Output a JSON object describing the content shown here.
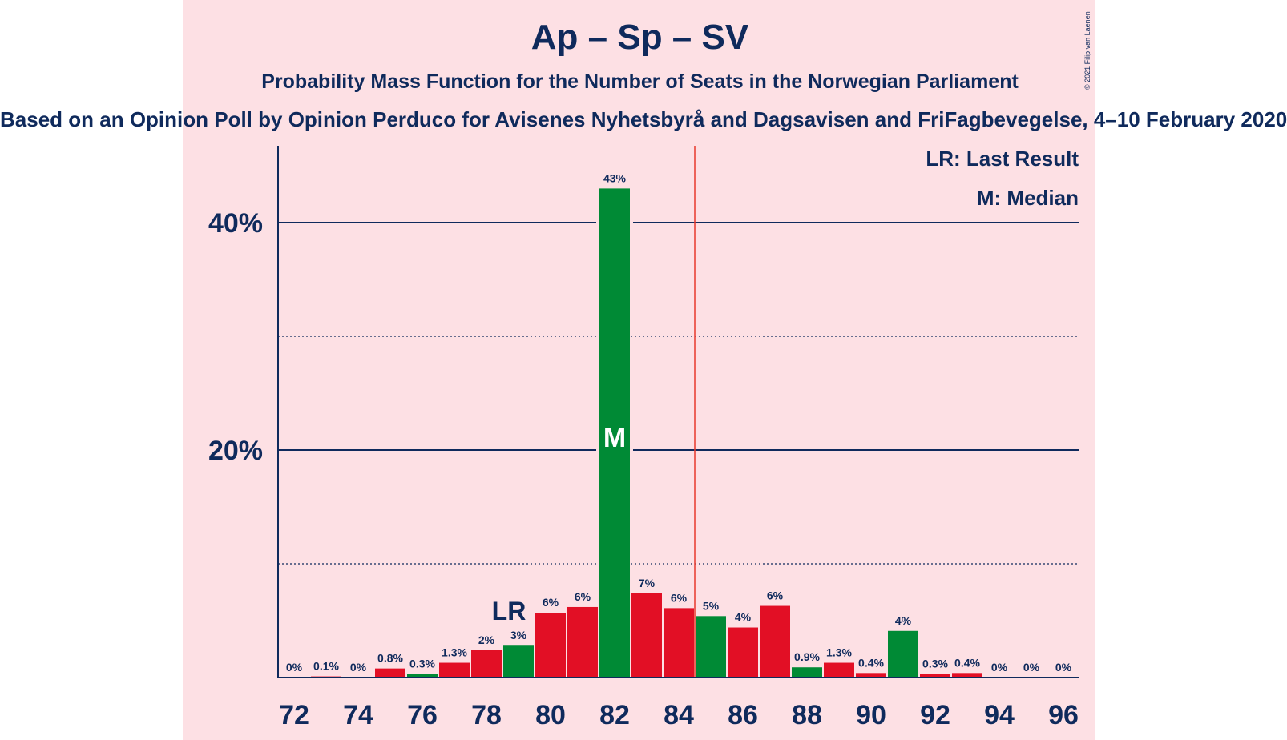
{
  "title": "Ap – Sp – SV",
  "subtitle": "Probability Mass Function for the Number of Seats in the Norwegian Parliament",
  "subtitle2": "Based on an Opinion Poll by Opinion Perduco for Avisenes Nyhetsbyrå and Dagsavisen and FriFagbevegelse, 4–10 February 2020",
  "copyright": "© 2021 Filip van Laenen",
  "legend": {
    "lr": "LR: Last Result",
    "m": "M: Median"
  },
  "colors": {
    "background": "#fde0e4",
    "red": "#e20f25",
    "green": "#008a35",
    "text": "#0f2a5c",
    "majority_line": "#e8392c"
  },
  "chart_data": {
    "type": "bar",
    "x": [
      72,
      73,
      74,
      75,
      76,
      77,
      78,
      79,
      80,
      81,
      82,
      83,
      84,
      85,
      86,
      87,
      88,
      89,
      90,
      91,
      92,
      93,
      94,
      95,
      96
    ],
    "values": [
      0,
      0.1,
      0,
      0.8,
      0.3,
      1.3,
      2.4,
      2.8,
      5.7,
      6.2,
      43,
      7.4,
      6.1,
      5.4,
      4.4,
      6.3,
      0.9,
      1.3,
      0.4,
      4.1,
      0.3,
      0.4,
      0,
      0,
      0
    ],
    "labels": [
      "0%",
      "0.1%",
      "0%",
      "0.8%",
      "0.3%",
      "1.3%",
      "2%",
      "3%",
      "6%",
      "6%",
      "43%",
      "7%",
      "6%",
      "5%",
      "4%",
      "6%",
      "0.9%",
      "1.3%",
      "0.4%",
      "4%",
      "0.3%",
      "0.4%",
      "0%",
      "0%",
      "0%"
    ],
    "bar_colors": [
      "red",
      "red",
      "red",
      "red",
      "green",
      "red",
      "red",
      "green",
      "red",
      "red",
      "green",
      "red",
      "red",
      "green",
      "red",
      "red",
      "green",
      "red",
      "red",
      "green",
      "red",
      "red",
      "red",
      "red",
      "red"
    ],
    "x_ticks": [
      72,
      74,
      76,
      78,
      80,
      82,
      84,
      86,
      88,
      90,
      92,
      94,
      96
    ],
    "y_ticks": [
      {
        "value": 20,
        "label": "20%"
      },
      {
        "value": 40,
        "label": "40%"
      }
    ],
    "y_minor_gridlines": [
      10,
      30
    ],
    "ylim": [
      0,
      47
    ],
    "majority_line_x": 84.5,
    "last_result": {
      "x": 79,
      "label": "LR"
    },
    "median": {
      "x": 82,
      "label": "M"
    }
  }
}
